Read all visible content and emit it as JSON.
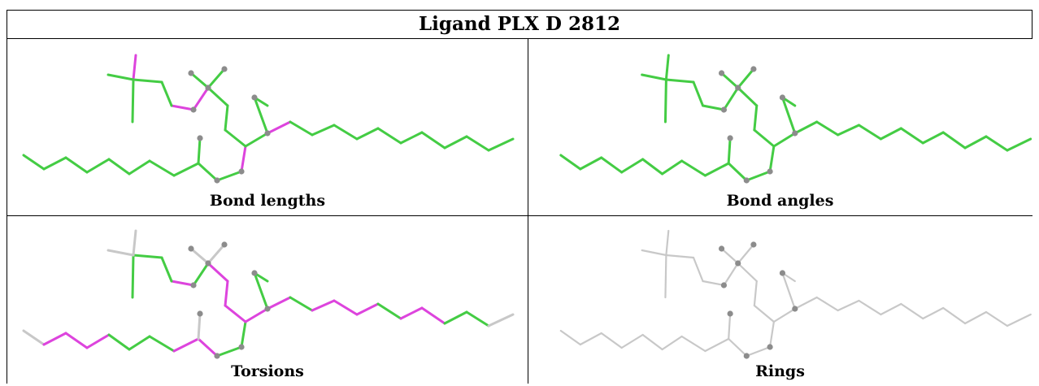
{
  "table": {
    "title": "Ligand PLX D 2812",
    "panels": [
      {
        "caption": "Bond lengths"
      },
      {
        "caption": "Bond angles"
      },
      {
        "caption": "Torsions"
      },
      {
        "caption": "Rings"
      }
    ]
  },
  "colors": {
    "ok": "#44cc44",
    "outlier": "#dd44dd",
    "neutral": "#c8c8c8",
    "atom": "#8c8c8c",
    "border": "#000000"
  }
}
